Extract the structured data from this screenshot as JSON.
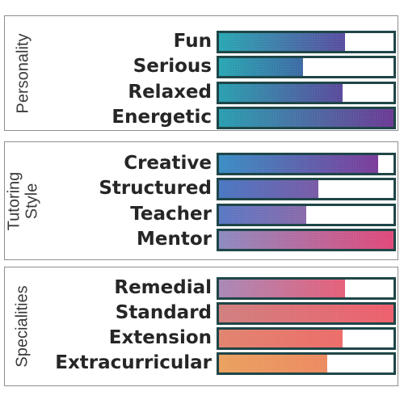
{
  "sections": [
    {
      "title_lines": [
        "Personality"
      ],
      "items": [
        {
          "label": "Fun",
          "value": 0.72,
          "color_start": "#2aa7b3",
          "color_end": "#5a4ea0"
        },
        {
          "label": "Serious",
          "value": 0.48,
          "color_start": "#2aa7b3",
          "color_end": "#3e6aa4"
        },
        {
          "label": "Relaxed",
          "value": 0.71,
          "color_start": "#2aa0b0",
          "color_end": "#5b4a9c"
        },
        {
          "label": "Energetic",
          "value": 1.0,
          "color_start": "#2a9fb1",
          "color_end": "#6c3b95"
        }
      ]
    },
    {
      "title_lines": [
        "Tutoring",
        "Style"
      ],
      "items": [
        {
          "label": "Creative",
          "value": 0.91,
          "color_start": "#3a8ec4",
          "color_end": "#7c3c9a"
        },
        {
          "label": "Structured",
          "value": 0.57,
          "color_start": "#4a78c2",
          "color_end": "#7a5aa6"
        },
        {
          "label": "Teacher",
          "value": 0.5,
          "color_start": "#5a78c4",
          "color_end": "#8a6aaa"
        },
        {
          "label": "Mentor",
          "value": 1.0,
          "color_start": "#8d8bc0",
          "color_end": "#e1497a"
        }
      ]
    },
    {
      "title_lines": [
        "Specialities"
      ],
      "items": [
        {
          "label": "Remedial",
          "value": 0.72,
          "color_start": "#a889b6",
          "color_end": "#e65f79"
        },
        {
          "label": "Standard",
          "value": 1.0,
          "color_start": "#d0807f",
          "color_end": "#ed5f6d"
        },
        {
          "label": "Extension",
          "value": 0.71,
          "color_start": "#e1846f",
          "color_end": "#ec6c6a"
        },
        {
          "label": "Extracurricular",
          "value": 0.62,
          "color_start": "#eaa15f",
          "color_end": "#ec8a61"
        }
      ]
    }
  ]
}
